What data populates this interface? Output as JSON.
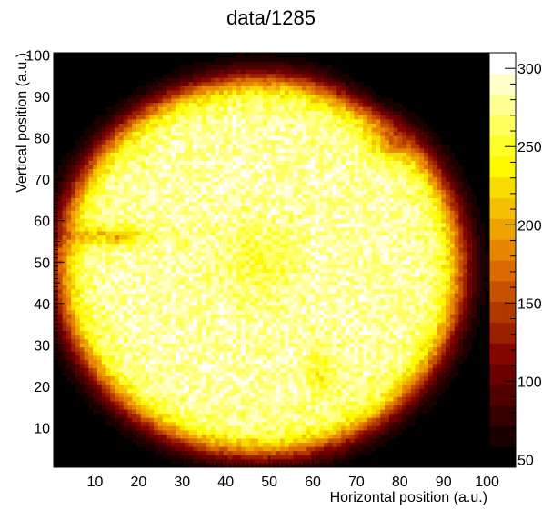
{
  "chart_data": {
    "type": "heatmap",
    "title": "data/1285",
    "xlabel": "Horizontal position (a.u.)",
    "ylabel": "Vertical position (a.u.)",
    "xlim": [
      1,
      100
    ],
    "ylim": [
      1,
      100
    ],
    "x_ticks": [
      "10",
      "20",
      "30",
      "40",
      "50",
      "60",
      "70",
      "80",
      "90",
      "100"
    ],
    "y_ticks": [
      "10",
      "20",
      "30",
      "40",
      "50",
      "60",
      "70",
      "80",
      "90",
      "100"
    ],
    "colorbar": {
      "range": [
        45,
        310
      ],
      "ticks": [
        "50",
        "100",
        "150",
        "200",
        "250",
        "300"
      ],
      "palette": "ROOT dark body radiator (black-red-orange-yellow-white)"
    },
    "intensity_model": {
      "background": 45,
      "disc_center": [
        48,
        49
      ],
      "disc_radius": 46,
      "plateau": 280,
      "features": [
        {
          "name": "upper-right-dim-region",
          "x": 82,
          "y": 93,
          "effect": "low (~90)"
        },
        {
          "name": "left-bright-streak",
          "x_range": [
            1,
            20
          ],
          "y": 56.5,
          "effect": "enhanced (~230)"
        },
        {
          "name": "dim-spot",
          "x": 78,
          "y": 79,
          "effect": "reduced (~200)"
        },
        {
          "name": "lower-right-bump",
          "x": 62,
          "y": 23,
          "effect": "enhanced (~240)"
        }
      ]
    }
  }
}
